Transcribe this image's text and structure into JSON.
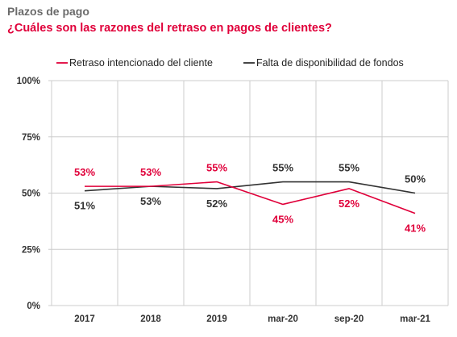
{
  "header": {
    "eyebrow": "Plazos de pago",
    "title": "¿Cuáles son las razones del retraso en pagos de clientes?"
  },
  "colors": {
    "accent": "#e0003a",
    "series_dark": "#333333",
    "grid": "#cccccc",
    "eyebrow": "#6b6b6b"
  },
  "chart_data": {
    "type": "line",
    "categories": [
      "2017",
      "2018",
      "2019",
      "mar-20",
      "sep-20",
      "mar-21"
    ],
    "yticks": [
      "100%",
      "75%",
      "50%",
      "25%",
      "0%"
    ],
    "ytick_values": [
      100,
      75,
      50,
      25,
      0
    ],
    "ylim": [
      0,
      100
    ],
    "grid": true,
    "legend_position": "top",
    "series": [
      {
        "name": "Retraso intencionado del cliente",
        "color": "#e0003a",
        "values": [
          53,
          53,
          55,
          45,
          52,
          41
        ],
        "labels": [
          "53%",
          "53%",
          "55%",
          "45%",
          "52%",
          "41%"
        ],
        "label_side": [
          "above",
          "above",
          "above",
          "below",
          "below",
          "below"
        ]
      },
      {
        "name": "Falta de disponibilidad de fondos",
        "color": "#333333",
        "values": [
          51,
          53,
          52,
          55,
          55,
          50
        ],
        "labels": [
          "51%",
          "53%",
          "52%",
          "55%",
          "55%",
          "50%"
        ],
        "label_side": [
          "below",
          "below",
          "below",
          "above",
          "above",
          "above"
        ]
      }
    ]
  }
}
